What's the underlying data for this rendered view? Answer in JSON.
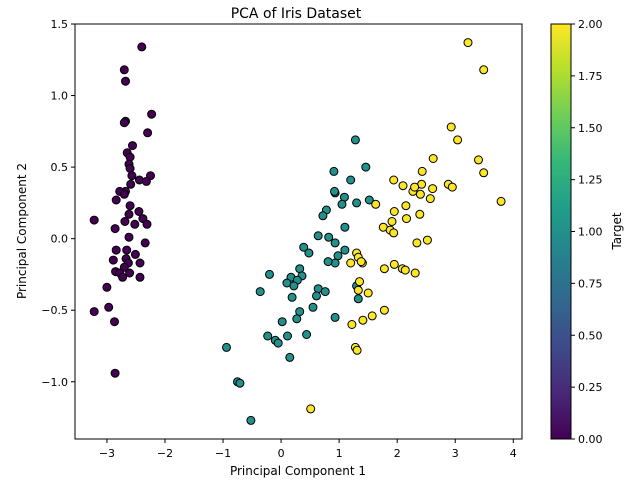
{
  "chart_data": {
    "type": "scatter",
    "title": "PCA of Iris Dataset",
    "xlabel": "Principal Component 1",
    "ylabel": "Principal Component 2",
    "xlim": [
      -3.55,
      4.15
    ],
    "ylim": [
      -1.4,
      1.5
    ],
    "xticks": [
      -3,
      -2,
      -1,
      0,
      1,
      2,
      3,
      4
    ],
    "xtick_labels": [
      "−3",
      "−2",
      "−1",
      "0",
      "1",
      "2",
      "3",
      "4"
    ],
    "yticks": [
      -1.0,
      -0.5,
      0.0,
      0.5,
      1.0,
      1.5
    ],
    "ytick_labels": [
      "−1.0",
      "−0.5",
      "0.0",
      "0.5",
      "1.0",
      "1.5"
    ],
    "grid": false,
    "marker_edge_color": "#000000",
    "colorbar": {
      "label": "Target",
      "range": [
        0.0,
        2.0
      ],
      "ticks": [
        0.0,
        0.25,
        0.5,
        0.75,
        1.0,
        1.25,
        1.5,
        1.75,
        2.0
      ],
      "tick_labels": [
        "0.00",
        "0.25",
        "0.50",
        "0.75",
        "1.00",
        "1.25",
        "1.50",
        "1.75",
        "2.00"
      ],
      "colormap": "viridis",
      "colors": [
        "#440154",
        "#482878",
        "#3e4a89",
        "#31688e",
        "#26828e",
        "#1f9e89",
        "#35b779",
        "#6ece58",
        "#b5de2b",
        "#fde725"
      ]
    },
    "class_colors": [
      "#440154",
      "#21918c",
      "#fde725"
    ],
    "points": [
      {
        "x": -2.4,
        "y": 1.34,
        "c": 0
      },
      {
        "x": -2.7,
        "y": 1.18,
        "c": 0
      },
      {
        "x": -2.68,
        "y": 1.1,
        "c": 0
      },
      {
        "x": -2.23,
        "y": 0.87,
        "c": 0
      },
      {
        "x": -2.68,
        "y": 0.82,
        "c": 0
      },
      {
        "x": -2.7,
        "y": 0.81,
        "c": 0
      },
      {
        "x": -2.3,
        "y": 0.74,
        "c": 0
      },
      {
        "x": -2.56,
        "y": 0.65,
        "c": 0
      },
      {
        "x": -2.65,
        "y": 0.6,
        "c": 0
      },
      {
        "x": -2.6,
        "y": 0.57,
        "c": 0
      },
      {
        "x": -2.62,
        "y": 0.52,
        "c": 0
      },
      {
        "x": -2.6,
        "y": 0.49,
        "c": 0
      },
      {
        "x": -2.57,
        "y": 0.44,
        "c": 0
      },
      {
        "x": -2.25,
        "y": 0.44,
        "c": 0
      },
      {
        "x": -2.44,
        "y": 0.41,
        "c": 0
      },
      {
        "x": -2.32,
        "y": 0.4,
        "c": 0
      },
      {
        "x": -2.59,
        "y": 0.38,
        "c": 0
      },
      {
        "x": -2.68,
        "y": 0.33,
        "c": 0
      },
      {
        "x": -2.78,
        "y": 0.33,
        "c": 0
      },
      {
        "x": -2.7,
        "y": 0.31,
        "c": 0
      },
      {
        "x": -2.84,
        "y": 0.27,
        "c": 0
      },
      {
        "x": -2.6,
        "y": 0.23,
        "c": 0
      },
      {
        "x": -2.45,
        "y": 0.19,
        "c": 0
      },
      {
        "x": -2.62,
        "y": 0.17,
        "c": 0
      },
      {
        "x": -2.38,
        "y": 0.14,
        "c": 0
      },
      {
        "x": -2.69,
        "y": 0.12,
        "c": 0
      },
      {
        "x": -2.52,
        "y": 0.1,
        "c": 0
      },
      {
        "x": -2.31,
        "y": 0.1,
        "c": 0
      },
      {
        "x": -3.22,
        "y": 0.13,
        "c": 0
      },
      {
        "x": -2.86,
        "y": 0.07,
        "c": 0
      },
      {
        "x": -2.62,
        "y": 0.01,
        "c": 0
      },
      {
        "x": -2.34,
        "y": -0.03,
        "c": 0
      },
      {
        "x": -2.66,
        "y": -0.08,
        "c": 0
      },
      {
        "x": -2.84,
        "y": -0.08,
        "c": 0
      },
      {
        "x": -2.51,
        "y": -0.11,
        "c": 0
      },
      {
        "x": -2.67,
        "y": -0.14,
        "c": 0
      },
      {
        "x": -2.89,
        "y": -0.15,
        "c": 0
      },
      {
        "x": -2.63,
        "y": -0.17,
        "c": 0
      },
      {
        "x": -2.43,
        "y": -0.17,
        "c": 0
      },
      {
        "x": -2.7,
        "y": -0.2,
        "c": 0
      },
      {
        "x": -2.85,
        "y": -0.23,
        "c": 0
      },
      {
        "x": -2.78,
        "y": -0.24,
        "c": 0
      },
      {
        "x": -2.61,
        "y": -0.24,
        "c": 0
      },
      {
        "x": -2.73,
        "y": -0.27,
        "c": 0
      },
      {
        "x": -3.0,
        "y": -0.34,
        "c": 0
      },
      {
        "x": -2.97,
        "y": -0.48,
        "c": 0
      },
      {
        "x": -3.22,
        "y": -0.51,
        "c": 0
      },
      {
        "x": -2.87,
        "y": -0.58,
        "c": 0
      },
      {
        "x": -2.86,
        "y": -0.94,
        "c": 0
      },
      {
        "x": -2.43,
        "y": -0.27,
        "c": 0
      },
      {
        "x": 1.28,
        "y": 0.69,
        "c": 1
      },
      {
        "x": 0.93,
        "y": 0.32,
        "c": 1
      },
      {
        "x": 1.46,
        "y": 0.5,
        "c": 1
      },
      {
        "x": 0.91,
        "y": 0.47,
        "c": 1
      },
      {
        "x": 1.2,
        "y": 0.41,
        "c": 1
      },
      {
        "x": 0.92,
        "y": 0.33,
        "c": 1
      },
      {
        "x": 1.09,
        "y": 0.29,
        "c": 1
      },
      {
        "x": 1.3,
        "y": 0.25,
        "c": 1
      },
      {
        "x": 1.52,
        "y": 0.27,
        "c": 1
      },
      {
        "x": 0.78,
        "y": 0.2,
        "c": 1
      },
      {
        "x": 1.05,
        "y": 0.24,
        "c": 1
      },
      {
        "x": 0.72,
        "y": 0.16,
        "c": 1
      },
      {
        "x": 0.82,
        "y": 0.01,
        "c": 1
      },
      {
        "x": 1.1,
        "y": 0.08,
        "c": 1
      },
      {
        "x": 0.64,
        "y": 0.02,
        "c": 1
      },
      {
        "x": 0.93,
        "y": -0.03,
        "c": 1
      },
      {
        "x": 1.1,
        "y": -0.08,
        "c": 1
      },
      {
        "x": 0.39,
        "y": -0.06,
        "c": 1
      },
      {
        "x": 0.48,
        "y": -0.1,
        "c": 1
      },
      {
        "x": 0.98,
        "y": -0.12,
        "c": 1
      },
      {
        "x": 0.93,
        "y": -0.17,
        "c": 1
      },
      {
        "x": 0.81,
        "y": -0.16,
        "c": 1
      },
      {
        "x": 0.32,
        "y": -0.21,
        "c": 1
      },
      {
        "x": -0.2,
        "y": -0.25,
        "c": 1
      },
      {
        "x": 0.17,
        "y": -0.27,
        "c": 1
      },
      {
        "x": 0.36,
        "y": -0.26,
        "c": 1
      },
      {
        "x": 0.28,
        "y": -0.29,
        "c": 1
      },
      {
        "x": 0.1,
        "y": -0.31,
        "c": 1
      },
      {
        "x": 0.22,
        "y": -0.33,
        "c": 1
      },
      {
        "x": 0.64,
        "y": -0.35,
        "c": 1
      },
      {
        "x": 0.76,
        "y": -0.37,
        "c": 1
      },
      {
        "x": -0.36,
        "y": -0.37,
        "c": 1
      },
      {
        "x": 0.61,
        "y": -0.4,
        "c": 1
      },
      {
        "x": 0.19,
        "y": -0.41,
        "c": 1
      },
      {
        "x": 1.3,
        "y": -0.33,
        "c": 1
      },
      {
        "x": 1.33,
        "y": -0.42,
        "c": 1
      },
      {
        "x": 0.55,
        "y": -0.48,
        "c": 1
      },
      {
        "x": 0.32,
        "y": -0.51,
        "c": 1
      },
      {
        "x": 0.27,
        "y": -0.56,
        "c": 1
      },
      {
        "x": 0.93,
        "y": -0.55,
        "c": 1
      },
      {
        "x": 0.02,
        "y": -0.58,
        "c": 1
      },
      {
        "x": -0.23,
        "y": -0.68,
        "c": 1
      },
      {
        "x": -0.1,
        "y": -0.71,
        "c": 1
      },
      {
        "x": 0.11,
        "y": -0.68,
        "c": 1
      },
      {
        "x": 0.44,
        "y": -0.67,
        "c": 1
      },
      {
        "x": -0.05,
        "y": -0.73,
        "c": 1
      },
      {
        "x": -0.94,
        "y": -0.76,
        "c": 1
      },
      {
        "x": 0.15,
        "y": -0.83,
        "c": 1
      },
      {
        "x": -0.75,
        "y": -1.0,
        "c": 1
      },
      {
        "x": -0.71,
        "y": -1.01,
        "c": 1
      },
      {
        "x": -0.52,
        "y": -1.27,
        "c": 1
      },
      {
        "x": 3.22,
        "y": 1.37,
        "c": 2
      },
      {
        "x": 3.49,
        "y": 1.18,
        "c": 2
      },
      {
        "x": 2.93,
        "y": 0.78,
        "c": 2
      },
      {
        "x": 3.04,
        "y": 0.69,
        "c": 2
      },
      {
        "x": 2.62,
        "y": 0.56,
        "c": 2
      },
      {
        "x": 3.4,
        "y": 0.55,
        "c": 2
      },
      {
        "x": 2.43,
        "y": 0.47,
        "c": 2
      },
      {
        "x": 3.49,
        "y": 0.46,
        "c": 2
      },
      {
        "x": 1.94,
        "y": 0.41,
        "c": 2
      },
      {
        "x": 2.88,
        "y": 0.38,
        "c": 2
      },
      {
        "x": 2.1,
        "y": 0.37,
        "c": 2
      },
      {
        "x": 2.42,
        "y": 0.38,
        "c": 2
      },
      {
        "x": 2.95,
        "y": 0.36,
        "c": 2
      },
      {
        "x": 2.61,
        "y": 0.35,
        "c": 2
      },
      {
        "x": 2.27,
        "y": 0.33,
        "c": 2
      },
      {
        "x": 2.4,
        "y": 0.31,
        "c": 2
      },
      {
        "x": 2.57,
        "y": 0.28,
        "c": 2
      },
      {
        "x": 3.79,
        "y": 0.26,
        "c": 2
      },
      {
        "x": 1.63,
        "y": 0.24,
        "c": 2
      },
      {
        "x": 2.15,
        "y": 0.23,
        "c": 2
      },
      {
        "x": 1.95,
        "y": 0.19,
        "c": 2
      },
      {
        "x": 2.39,
        "y": 0.17,
        "c": 2
      },
      {
        "x": 2.16,
        "y": 0.14,
        "c": 2
      },
      {
        "x": 1.91,
        "y": 0.12,
        "c": 2
      },
      {
        "x": 1.76,
        "y": 0.08,
        "c": 2
      },
      {
        "x": 1.88,
        "y": 0.06,
        "c": 2
      },
      {
        "x": 1.94,
        "y": 0.04,
        "c": 2
      },
      {
        "x": 2.52,
        "y": -0.01,
        "c": 2
      },
      {
        "x": 2.34,
        "y": -0.03,
        "c": 2
      },
      {
        "x": 1.3,
        "y": -0.1,
        "c": 2
      },
      {
        "x": 1.33,
        "y": -0.13,
        "c": 2
      },
      {
        "x": 1.2,
        "y": -0.17,
        "c": 2
      },
      {
        "x": 1.4,
        "y": -0.17,
        "c": 2
      },
      {
        "x": 1.95,
        "y": -0.18,
        "c": 2
      },
      {
        "x": 2.09,
        "y": -0.21,
        "c": 2
      },
      {
        "x": 1.78,
        "y": -0.21,
        "c": 2
      },
      {
        "x": 2.14,
        "y": -0.22,
        "c": 2
      },
      {
        "x": 2.31,
        "y": -0.24,
        "c": 2
      },
      {
        "x": 1.35,
        "y": -0.3,
        "c": 2
      },
      {
        "x": 1.33,
        "y": -0.36,
        "c": 2
      },
      {
        "x": 1.5,
        "y": -0.38,
        "c": 2
      },
      {
        "x": 1.78,
        "y": -0.5,
        "c": 2
      },
      {
        "x": 1.57,
        "y": -0.54,
        "c": 2
      },
      {
        "x": 1.41,
        "y": -0.57,
        "c": 2
      },
      {
        "x": 1.22,
        "y": -0.6,
        "c": 2
      },
      {
        "x": 1.28,
        "y": -0.76,
        "c": 2
      },
      {
        "x": 1.31,
        "y": -0.78,
        "c": 2
      },
      {
        "x": 0.51,
        "y": -1.19,
        "c": 2
      },
      {
        "x": 1.38,
        "y": -0.16,
        "c": 2
      },
      {
        "x": 2.3,
        "y": 0.36,
        "c": 2
      }
    ]
  }
}
